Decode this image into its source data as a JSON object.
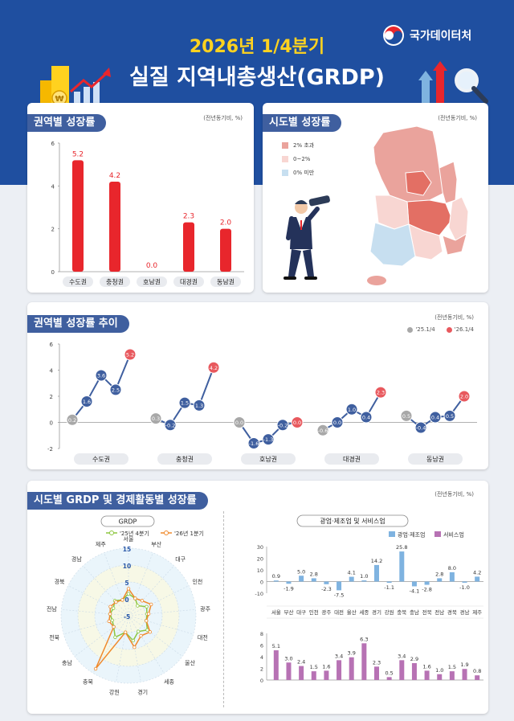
{
  "header": {
    "title_line1": "2026년 1/4분기",
    "title_line2": "실질 지역내총생산(GRDP)",
    "org_name": "국가데이터처",
    "icons": [
      "coins-icon",
      "growth-arrow-icon",
      "bar-arrows-icon",
      "magnifier-icon"
    ]
  },
  "colors": {
    "red": "#e8262c",
    "blue": "#3f5f9f",
    "gray": "#a8a8a8",
    "orange": "#f08a2c",
    "green": "#8cc63f",
    "mining": "#7fb3e0",
    "service": "#b772b4"
  },
  "region_growth": {
    "title": "권역별 성장률",
    "unit": "(전년동기비, %)",
    "chart_data": {
      "type": "bar",
      "categories": [
        "수도권",
        "충청권",
        "호남권",
        "대경권",
        "동남권"
      ],
      "values": [
        5.2,
        4.2,
        0.0,
        2.3,
        2.0
      ],
      "ylim": [
        0,
        6
      ],
      "yticks": [
        0,
        2,
        4,
        6
      ]
    }
  },
  "province_map": {
    "title": "시도별 성장률",
    "unit": "(전년동기비, %)",
    "legend": [
      {
        "label": "2% 초과",
        "color": "#eaa39c"
      },
      {
        "label": "0~2%",
        "color": "#f8d6d2"
      },
      {
        "label": "0% 미만",
        "color": "#c7dff0"
      }
    ],
    "icons": [
      "korea-map-icon",
      "person-with-telescope-icon"
    ]
  },
  "trend": {
    "title": "권역별 성장률 추이",
    "unit": "(전년동기비, %)",
    "legend": [
      "'25.1/4",
      "'26.1/4"
    ],
    "chart_data": {
      "type": "line",
      "ylim": [
        -2,
        6
      ],
      "yticks": [
        -2,
        0,
        2,
        4,
        6
      ],
      "groups": [
        {
          "name": "수도권",
          "values": [
            0.2,
            1.6,
            3.6,
            2.5,
            5.2
          ]
        },
        {
          "name": "충청권",
          "values": [
            0.3,
            -0.2,
            1.5,
            1.3,
            4.2
          ]
        },
        {
          "name": "호남권",
          "values": [
            0.0,
            -1.6,
            -1.3,
            -0.2,
            0.0
          ]
        },
        {
          "name": "대경권",
          "values": [
            -0.6,
            0.0,
            1.0,
            0.4,
            2.3
          ]
        },
        {
          "name": "동남권",
          "values": [
            0.5,
            -0.4,
            0.4,
            0.5,
            2.0
          ]
        }
      ]
    }
  },
  "province_detail": {
    "title": "시도별 GRDP 및 경제활동별 성장률",
    "unit": "(전년동기비, %)",
    "radar": {
      "title": "GRDP",
      "legend": [
        "'25년 4분기",
        "'26년 1분기"
      ],
      "chart_data": {
        "type": "radar",
        "axes": [
          "서울",
          "부산",
          "대구",
          "인천",
          "광주",
          "대전",
          "울산",
          "세종",
          "경기",
          "강원",
          "충북",
          "충남",
          "전북",
          "전남",
          "경북",
          "경남",
          "제주"
        ],
        "ticks": [
          "-5",
          "0",
          "5",
          "10",
          "15"
        ],
        "rlim": [
          -5,
          15
        ],
        "series": [
          {
            "name": "'25년 4분기",
            "values": [
              1.5,
              0.5,
              -1.0,
              1.0,
              0.5,
              0.5,
              2.0,
              0.5,
              2.5,
              0.0,
              2.5,
              0.5,
              0.0,
              0.5,
              0.0,
              1.0,
              0.0
            ]
          },
          {
            "name": "'26년 1분기",
            "values": [
              3.0,
              0.5,
              1.0,
              2.5,
              1.0,
              0.5,
              3.0,
              2.0,
              4.5,
              0.0,
              13.5,
              0.5,
              1.0,
              0.5,
              1.0,
              0.5,
              0.0
            ]
          }
        ]
      }
    },
    "mining": {
      "title": "광업·제조업 및 서비스업",
      "legend": [
        "광업·제조업",
        "서비스업"
      ],
      "chart_data": {
        "type": "bar",
        "categories": [
          "서울",
          "부산",
          "대구",
          "인천",
          "광주",
          "대전",
          "울산",
          "세종",
          "경기",
          "강원",
          "충북",
          "충남",
          "전북",
          "전남",
          "경북",
          "경남",
          "제주"
        ],
        "values": [
          0.9,
          -1.9,
          5.0,
          2.8,
          -2.3,
          -7.5,
          4.1,
          1.0,
          14.2,
          -1.1,
          25.8,
          -4.1,
          -2.8,
          2.8,
          8.0,
          -1.0,
          4.2
        ],
        "value_labels": [
          "0.9",
          "-1.9",
          "5.0",
          "2.8",
          "-2.3",
          "-7.5",
          "4.1",
          "1.0",
          "14.2",
          "-1.1",
          "25.8",
          "-4.1",
          "-2.8",
          "2.8",
          "8.0",
          "-1.0",
          "4.2"
        ],
        "ylim": [
          -10,
          30
        ],
        "yticks": [
          -10,
          0,
          10,
          20,
          30
        ]
      }
    },
    "service": {
      "chart_data": {
        "type": "bar",
        "categories": [
          "서울",
          "부산",
          "대구",
          "인천",
          "광주",
          "대전",
          "울산",
          "세종",
          "경기",
          "강원",
          "충북",
          "충남",
          "전북",
          "전남",
          "경북",
          "경남",
          "제주"
        ],
        "values": [
          5.1,
          3.0,
          2.4,
          1.5,
          1.6,
          3.4,
          3.9,
          6.3,
          2.3,
          0.5,
          3.4,
          2.9,
          1.6,
          1.0,
          1.5,
          1.9,
          0.8
        ],
        "value_labels": [
          "5.1",
          "3.0",
          "2.4",
          "1.5",
          "1.6",
          "3.4",
          "3.9",
          "6.3",
          "2.3",
          "0.5",
          "3.4",
          "2.9",
          "1.6",
          "1.0",
          "1.5",
          "1.9",
          "0.8"
        ],
        "ylim": [
          0,
          8
        ],
        "yticks": [
          0,
          2,
          4,
          6,
          8
        ]
      }
    }
  }
}
